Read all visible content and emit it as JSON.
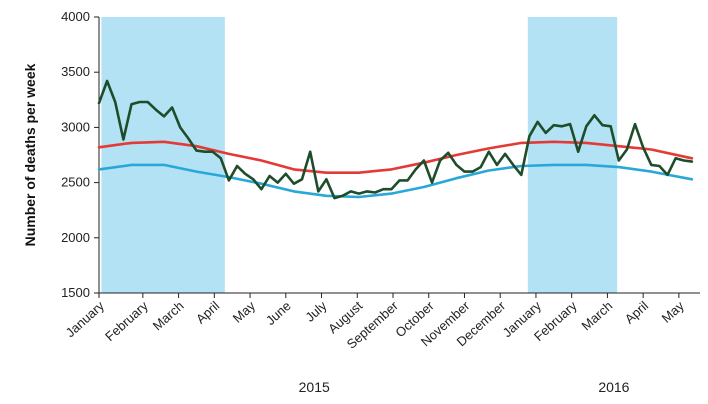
{
  "chart_data": {
    "type": "line",
    "title": "",
    "xlabel": "",
    "ylabel": "Number of deaths per week",
    "ylim": [
      1500,
      4000
    ],
    "yticks": [
      1500,
      2000,
      2500,
      3000,
      3500,
      4000
    ],
    "grid": false,
    "legend": "none",
    "week_range": [
      0,
      74
    ],
    "month_labels": [
      {
        "label": "January",
        "week": 0
      },
      {
        "label": "February",
        "week": 5.4
      },
      {
        "label": "March",
        "week": 9.8
      },
      {
        "label": "April",
        "week": 14.2
      },
      {
        "label": "May",
        "week": 18.6
      },
      {
        "label": "June",
        "week": 23
      },
      {
        "label": "July",
        "week": 27.4
      },
      {
        "label": "August",
        "week": 31.8
      },
      {
        "label": "September",
        "week": 36.2
      },
      {
        "label": "October",
        "week": 40.6
      },
      {
        "label": "November",
        "week": 45
      },
      {
        "label": "December",
        "week": 49.4
      },
      {
        "label": "January",
        "week": 53.8
      },
      {
        "label": "February",
        "week": 58.2
      },
      {
        "label": "March",
        "week": 62.6
      },
      {
        "label": "April",
        "week": 67
      },
      {
        "label": "May",
        "week": 71.4
      }
    ],
    "year_labels": [
      {
        "label": "2015",
        "week": 26.5
      },
      {
        "label": "2016",
        "week": 63.4
      }
    ],
    "shaded_regions": [
      {
        "from": 0.3,
        "to": 15.5,
        "color": "#b3e2f5"
      },
      {
        "from": 52.8,
        "to": 63.8,
        "color": "#b3e2f5"
      }
    ],
    "series": [
      {
        "color": "#1e4d2b",
        "x": [
          0,
          1,
          2,
          3,
          4,
          5,
          6,
          7,
          8,
          9,
          10,
          11,
          12,
          13,
          14,
          15,
          16,
          17,
          18,
          19,
          20,
          21,
          22,
          23,
          24,
          25,
          26,
          27,
          28,
          29,
          30,
          31,
          32,
          33,
          34,
          35,
          36,
          37,
          38,
          39,
          40,
          41,
          42,
          43,
          44,
          45,
          46,
          47,
          48,
          49,
          50,
          51,
          52,
          53,
          54,
          55,
          56,
          57,
          58,
          59,
          60,
          61,
          62,
          63,
          64,
          65,
          66,
          67,
          68,
          69,
          70,
          71,
          72,
          73
        ],
        "y": [
          3220,
          3420,
          3230,
          2890,
          3210,
          3230,
          3230,
          3160,
          3100,
          3180,
          3000,
          2900,
          2790,
          2780,
          2780,
          2720,
          2520,
          2650,
          2580,
          2530,
          2440,
          2560,
          2500,
          2580,
          2490,
          2530,
          2780,
          2420,
          2530,
          2360,
          2380,
          2420,
          2400,
          2420,
          2410,
          2440,
          2440,
          2520,
          2520,
          2620,
          2700,
          2500,
          2700,
          2770,
          2660,
          2600,
          2600,
          2640,
          2780,
          2660,
          2760,
          2660,
          2570,
          2920,
          3050,
          2950,
          3020,
          3010,
          3030,
          2780,
          3010,
          3110,
          3020,
          3010,
          2700,
          2800,
          3030,
          2820,
          2660,
          2650,
          2570,
          2720,
          2700,
          2690
        ]
      },
      {
        "color": "#e53935",
        "x": [
          0,
          4,
          8,
          12,
          16,
          20,
          24,
          28,
          32,
          36,
          40,
          44,
          48,
          52,
          56,
          60,
          64,
          68,
          73
        ],
        "y": [
          2820,
          2860,
          2870,
          2830,
          2760,
          2700,
          2620,
          2590,
          2590,
          2620,
          2680,
          2750,
          2810,
          2860,
          2870,
          2860,
          2830,
          2800,
          2720
        ]
      },
      {
        "color": "#29a8d8",
        "x": [
          0,
          4,
          8,
          12,
          16,
          20,
          24,
          28,
          32,
          36,
          40,
          44,
          48,
          52,
          56,
          60,
          64,
          68,
          73
        ],
        "y": [
          2620,
          2660,
          2660,
          2600,
          2550,
          2490,
          2420,
          2380,
          2370,
          2400,
          2460,
          2540,
          2610,
          2650,
          2660,
          2660,
          2640,
          2600,
          2530
        ]
      }
    ]
  }
}
